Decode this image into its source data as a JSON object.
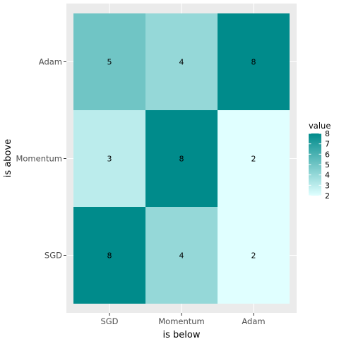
{
  "chart_data": {
    "type": "heatmap",
    "title": "",
    "xlabel": "is below",
    "ylabel": "is above",
    "x_categories": [
      "SGD",
      "Momentum",
      "Adam"
    ],
    "y_categories": [
      "SGD",
      "Momentum",
      "Adam"
    ],
    "values": [
      {
        "x": "SGD",
        "y": "Adam",
        "value": 5
      },
      {
        "x": "Momentum",
        "y": "Adam",
        "value": 4
      },
      {
        "x": "Adam",
        "y": "Adam",
        "value": 8
      },
      {
        "x": "SGD",
        "y": "Momentum",
        "value": 3
      },
      {
        "x": "Momentum",
        "y": "Momentum",
        "value": 8
      },
      {
        "x": "Adam",
        "y": "Momentum",
        "value": 2
      },
      {
        "x": "SGD",
        "y": "SGD",
        "value": 8
      },
      {
        "x": "Momentum",
        "y": "SGD",
        "value": 4
      },
      {
        "x": "Adam",
        "y": "SGD",
        "value": 2
      }
    ],
    "legend": {
      "title": "value",
      "ticks": [
        2,
        3,
        4,
        5,
        6,
        7,
        8
      ],
      "range": [
        2,
        8
      ],
      "color_low": "#e0ffff",
      "color_high": "#008b8b",
      "placement": "right"
    },
    "panel_background": "#ebebeb",
    "grid": true
  }
}
